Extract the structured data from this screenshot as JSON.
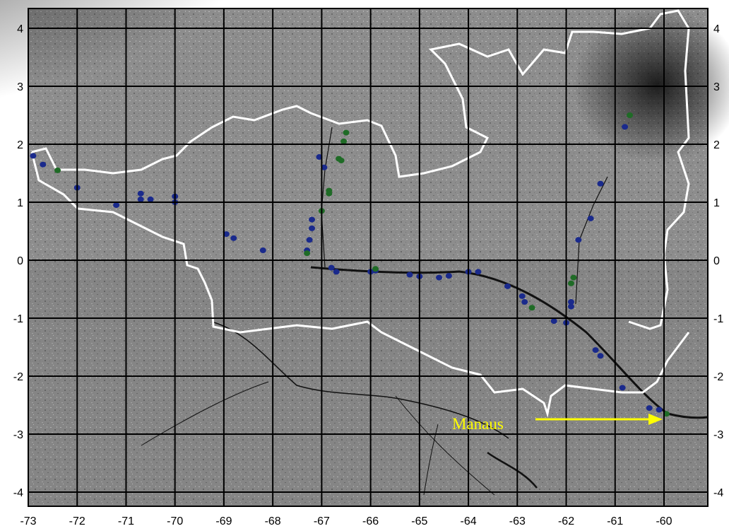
{
  "map": {
    "place_label": "Manaus",
    "x_ticks": [
      "-73",
      "-72",
      "-71",
      "-70",
      "-69",
      "-68",
      "-67",
      "-66",
      "-65",
      "-64",
      "-63",
      "-62",
      "-61",
      "-60"
    ],
    "y_ticks": [
      "4",
      "3",
      "2",
      "1",
      "0",
      "-1",
      "-2",
      "-3",
      "-4"
    ],
    "lon_range": [
      -73,
      -60
    ],
    "lat_range": [
      -4,
      4
    ],
    "colors": {
      "background": "#8f8f8f",
      "grid": "#000000",
      "boundary": "#ffffff",
      "label": "#ffff00",
      "arrow": "#ffff00",
      "station_blue": "#1a2a8c",
      "station_green": "#1f6b26"
    },
    "stations_blue": [
      [
        -72.9,
        1.8
      ],
      [
        -72.7,
        1.65
      ],
      [
        -72.0,
        1.25
      ],
      [
        -71.2,
        0.95
      ],
      [
        -70.7,
        1.15
      ],
      [
        -70.7,
        1.05
      ],
      [
        -70.5,
        1.05
      ],
      [
        -70.0,
        1.0
      ],
      [
        -70.0,
        1.1
      ],
      [
        -68.95,
        0.45
      ],
      [
        -68.8,
        0.38
      ],
      [
        -68.2,
        0.17
      ],
      [
        -67.3,
        0.17
      ],
      [
        -67.25,
        0.35
      ],
      [
        -67.2,
        0.55
      ],
      [
        -67.2,
        0.7
      ],
      [
        -67.05,
        1.78
      ],
      [
        -66.95,
        1.6
      ],
      [
        -66.8,
        -0.13
      ],
      [
        -66.7,
        -0.2
      ],
      [
        -66.0,
        -0.2
      ],
      [
        -65.9,
        -0.18
      ],
      [
        -65.2,
        -0.25
      ],
      [
        -65.0,
        -0.28
      ],
      [
        -64.6,
        -0.3
      ],
      [
        -64.4,
        -0.27
      ],
      [
        -64.0,
        -0.2
      ],
      [
        -63.8,
        -0.2
      ],
      [
        -63.2,
        -0.45
      ],
      [
        -62.9,
        -0.62
      ],
      [
        -62.85,
        -0.72
      ],
      [
        -62.25,
        -1.05
      ],
      [
        -62.0,
        -1.08
      ],
      [
        -61.9,
        -0.8
      ],
      [
        -61.9,
        -0.72
      ],
      [
        -61.75,
        0.35
      ],
      [
        -61.5,
        0.72
      ],
      [
        -61.3,
        1.32
      ],
      [
        -60.8,
        2.3
      ],
      [
        -61.4,
        -1.55
      ],
      [
        -61.3,
        -1.65
      ],
      [
        -60.85,
        -2.2
      ],
      [
        -60.3,
        -2.55
      ],
      [
        -60.1,
        -2.58
      ]
    ],
    "stations_green": [
      [
        -72.4,
        1.55
      ],
      [
        -66.5,
        2.2
      ],
      [
        -66.55,
        2.05
      ],
      [
        -66.65,
        1.75
      ],
      [
        -66.6,
        1.72
      ],
      [
        -66.85,
        1.2
      ],
      [
        -66.85,
        1.15
      ],
      [
        -67.0,
        0.85
      ],
      [
        -67.3,
        0.12
      ],
      [
        -65.9,
        -0.15
      ],
      [
        -62.7,
        -0.82
      ],
      [
        -61.85,
        -0.3
      ],
      [
        -61.9,
        -0.4
      ],
      [
        -60.7,
        2.5
      ],
      [
        -59.95,
        -2.65
      ]
    ]
  }
}
